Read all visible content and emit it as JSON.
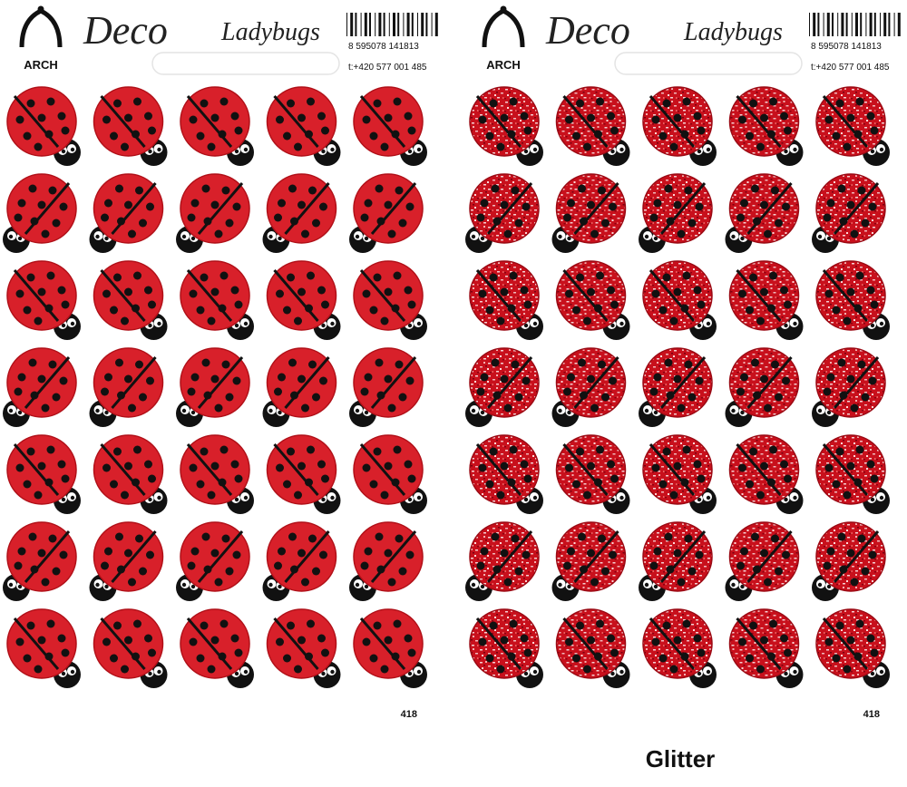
{
  "sheets": [
    {
      "brand": "ARCH",
      "title": "Deco",
      "subtitle": "Ladybugs",
      "barcode": "8 595078 141813",
      "phone": "t:+420 577 001 485",
      "code": "418"
    },
    {
      "brand": "ARCH",
      "title": "Deco",
      "subtitle": "Ladybugs",
      "barcode": "8 595078 141813",
      "phone": "t:+420 577 001 485",
      "code": "418"
    }
  ],
  "caption": "Glitter"
}
